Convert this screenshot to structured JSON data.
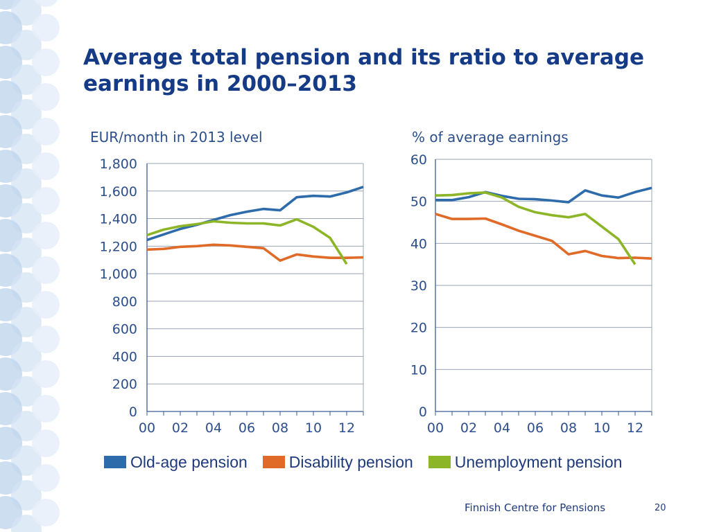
{
  "slide": {
    "title": "Average total pension and its ratio to average earnings in 2000–2013",
    "footer": "Finnish Centre for Pensions",
    "page_number": "20"
  },
  "legend": [
    {
      "label": "Old-age pension",
      "color": "#2d6bab"
    },
    {
      "label": "Disability pension",
      "color": "#e06a28"
    },
    {
      "label": "Unemployment pension",
      "color": "#8db528"
    }
  ],
  "chart_data": [
    {
      "type": "line",
      "ylabel": "EUR/month in 2013 level",
      "x": [
        "00",
        "01",
        "02",
        "03",
        "04",
        "05",
        "06",
        "07",
        "08",
        "09",
        "10",
        "11",
        "12",
        "13"
      ],
      "x_tick_labels": [
        "00",
        "02",
        "04",
        "06",
        "08",
        "10",
        "12"
      ],
      "ylim": [
        0,
        1800
      ],
      "y_ticks": [
        "0",
        "200",
        "400",
        "600",
        "800",
        "1,000",
        "1,200",
        "1,400",
        "1,600",
        "1,800"
      ],
      "grid": true,
      "series": [
        {
          "name": "Old-age pension",
          "color": "#2d6bab",
          "values": [
            1245,
            1285,
            1325,
            1355,
            1390,
            1425,
            1450,
            1470,
            1460,
            1555,
            1565,
            1560,
            1590,
            1630
          ]
        },
        {
          "name": "Disability pension",
          "color": "#e06a28",
          "values": [
            1175,
            1180,
            1195,
            1200,
            1210,
            1205,
            1195,
            1185,
            1095,
            1140,
            1125,
            1115,
            1115,
            1118
          ]
        },
        {
          "name": "Unemployment pension",
          "color": "#8db528",
          "values": [
            1280,
            1320,
            1345,
            1360,
            1380,
            1370,
            1365,
            1365,
            1350,
            1395,
            1340,
            1260,
            1070,
            null
          ]
        }
      ]
    },
    {
      "type": "line",
      "ylabel": "% of average earnings",
      "x": [
        "00",
        "01",
        "02",
        "03",
        "04",
        "05",
        "06",
        "07",
        "08",
        "09",
        "10",
        "11",
        "12",
        "13"
      ],
      "x_tick_labels": [
        "00",
        "02",
        "04",
        "06",
        "08",
        "10",
        "12"
      ],
      "ylim": [
        0,
        60
      ],
      "y_ticks": [
        "0",
        "10",
        "20",
        "30",
        "40",
        "50",
        "60"
      ],
      "grid": true,
      "series": [
        {
          "name": "Old-age pension",
          "color": "#2d6bab",
          "values": [
            50.3,
            50.3,
            51.0,
            52.2,
            51.3,
            50.6,
            50.5,
            50.2,
            49.8,
            52.6,
            51.4,
            50.9,
            52.2,
            53.2
          ]
        },
        {
          "name": "Disability pension",
          "color": "#e06a28",
          "values": [
            47.0,
            45.8,
            45.8,
            45.9,
            44.5,
            43.0,
            41.8,
            40.6,
            37.4,
            38.2,
            37.0,
            36.5,
            36.6,
            36.4
          ]
        },
        {
          "name": "Unemployment pension",
          "color": "#8db528",
          "values": [
            51.4,
            51.5,
            51.9,
            52.1,
            50.9,
            48.7,
            47.4,
            46.7,
            46.2,
            47.0,
            44.0,
            41.0,
            35.0,
            null
          ]
        }
      ]
    }
  ]
}
